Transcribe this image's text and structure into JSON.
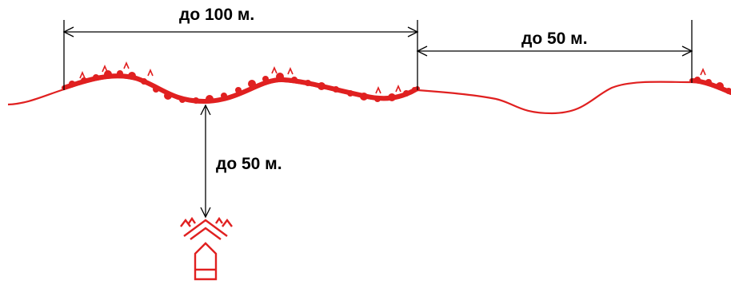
{
  "labels": {
    "front_width": "до 100 м.",
    "gap_width": "до 50 м.",
    "depth": "до 50 м."
  },
  "colors": {
    "terrain": "#e02020",
    "dimension_lines": "#000000",
    "text": "#000000",
    "background": "#ffffff"
  }
}
